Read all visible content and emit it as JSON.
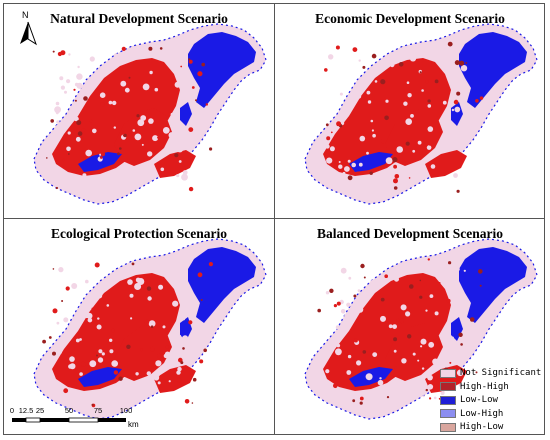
{
  "panels": [
    {
      "title": "Natural Development Scenario"
    },
    {
      "title": "Economic Development Scenario"
    },
    {
      "title": "Ecological Protection Scenario"
    },
    {
      "title": "Balanced Development Scenario"
    }
  ],
  "north_arrow": {
    "label": "N"
  },
  "legend": [
    {
      "label": "Not Significant",
      "color": "#f2d6e6"
    },
    {
      "label": "High-High",
      "color": "#b3222a"
    },
    {
      "label": "Low-Low",
      "color": "#1f1fd6"
    },
    {
      "label": "Low-High",
      "color": "#8c8ef0"
    },
    {
      "label": "High-Low",
      "color": "#d9a69e"
    }
  ],
  "scale_bar": {
    "ticks": [
      "0",
      "12.5",
      "25",
      "50",
      "75",
      "100"
    ],
    "unit": "km"
  },
  "colors": {
    "not_significant": "#f2d6e6",
    "high_high": "#e01b1b",
    "high_high_dark": "#9a1f1f",
    "low_low": "#1a1ae6",
    "border": "#555555"
  }
}
